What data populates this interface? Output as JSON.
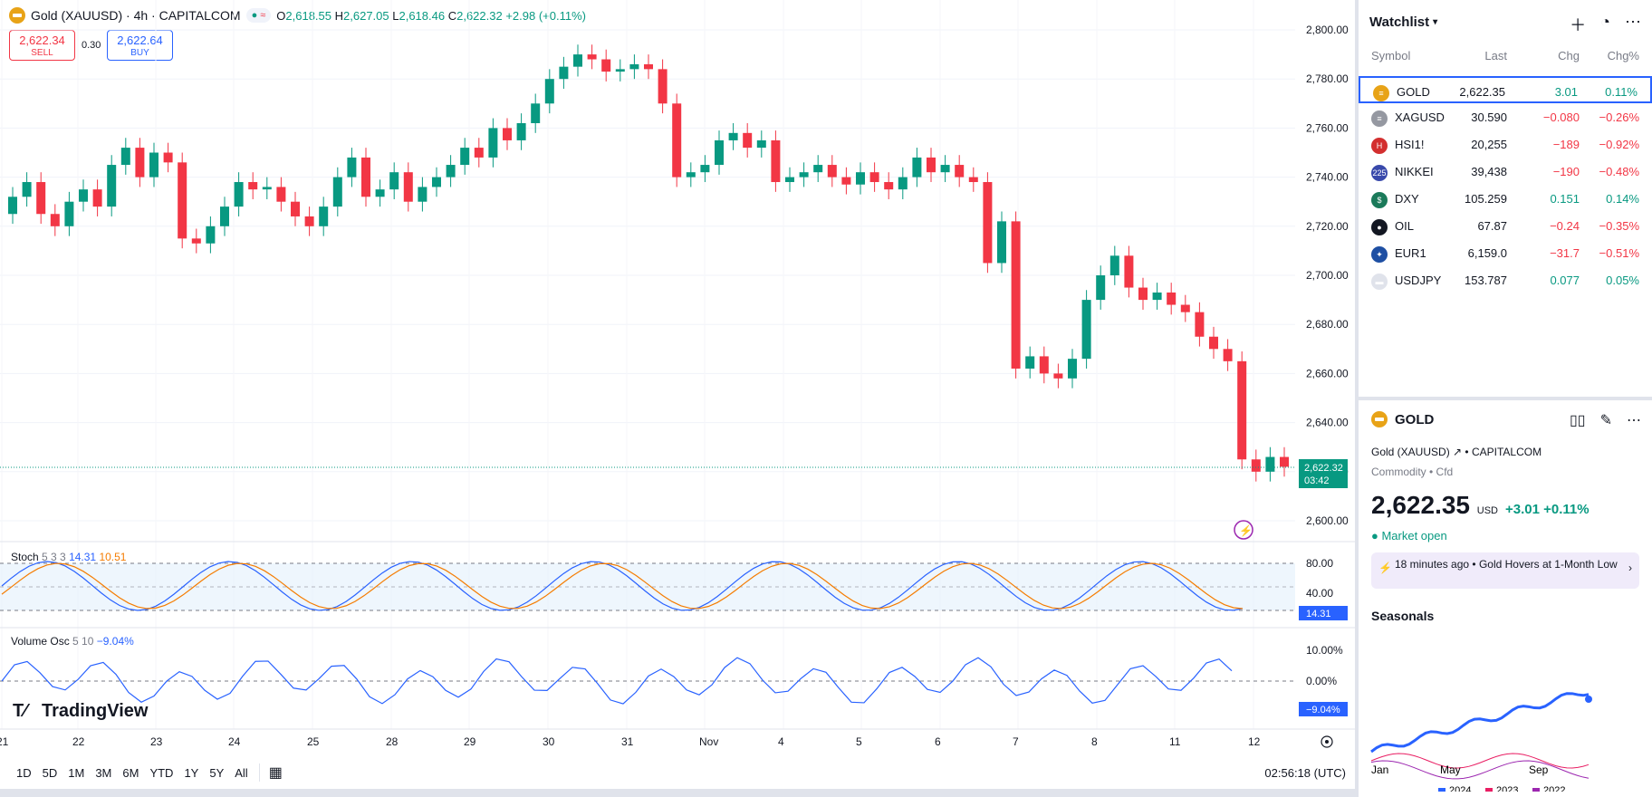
{
  "symbol": {
    "title": "Gold (XAUUSD) · 4h · CAPITALCOM",
    "open_label": "O",
    "open": "2,618.55",
    "high_label": "H",
    "high": "2,627.05",
    "low_label": "L",
    "low": "2,618.46",
    "close_label": "C",
    "close": "2,622.32",
    "change": "+2.98 (+0.11%)",
    "sell_price": "2,622.34",
    "sell_label": "SELL",
    "buy_price": "2,622.64",
    "buy_label": "BUY",
    "spread": "0.30",
    "last_price_tag": "2,622.32",
    "countdown": "03:42"
  },
  "price_axis": [
    "2,800.00",
    "2,780.00",
    "2,760.00",
    "2,740.00",
    "2,720.00",
    "2,700.00",
    "2,680.00",
    "2,660.00",
    "2,640.00",
    "2,620.00",
    "2,600.00"
  ],
  "time_axis": [
    "21",
    "22",
    "23",
    "24",
    "25",
    "28",
    "29",
    "30",
    "31",
    "Nov",
    "4",
    "5",
    "6",
    "7",
    "8",
    "11",
    "12"
  ],
  "stoch": {
    "name": "Stoch",
    "params": "5 3 3",
    "k": "14.31",
    "d": "10.51",
    "axis": [
      "80.00",
      "40.00"
    ],
    "tag": "14.31"
  },
  "volosc": {
    "name": "Volume Osc",
    "params": "5 10",
    "value": "−9.04%",
    "axis": [
      "10.00%",
      "0.00%"
    ],
    "tag": "−9.04%"
  },
  "brand": "TradingView",
  "timeframes": [
    "1D",
    "5D",
    "1M",
    "3M",
    "6M",
    "YTD",
    "1Y",
    "5Y",
    "All"
  ],
  "clock": "02:56:18 (UTC)",
  "watchlist": {
    "title": "Watchlist",
    "columns": [
      "Symbol",
      "Last",
      "Chg",
      "Chg%"
    ],
    "rows": [
      {
        "symbol": "GOLD",
        "last": "2,622.35",
        "chg": "3.01",
        "chgp": "0.11%",
        "dir": "pos",
        "icon_color": "#e8a317",
        "icon": "≡"
      },
      {
        "symbol": "XAGUSD",
        "last": "30.590",
        "chg": "−0.080",
        "chgp": "−0.26%",
        "dir": "neg",
        "icon_color": "#9598a1",
        "icon": "≡"
      },
      {
        "symbol": "HSI1!",
        "last": "20,255",
        "chg": "−189",
        "chgp": "−0.92%",
        "dir": "neg",
        "icon_color": "#d32f2f",
        "icon": "H"
      },
      {
        "symbol": "NIKKEI",
        "last": "39,438",
        "chg": "−190",
        "chgp": "−0.48%",
        "dir": "neg",
        "icon_color": "#3949ab",
        "icon": "225"
      },
      {
        "symbol": "DXY",
        "last": "105.259",
        "chg": "0.151",
        "chgp": "0.14%",
        "dir": "pos",
        "icon_color": "#1b7a5a",
        "icon": "$"
      },
      {
        "symbol": "OIL",
        "last": "67.87",
        "chg": "−0.24",
        "chgp": "−0.35%",
        "dir": "neg",
        "icon_color": "#131722",
        "icon": "●"
      },
      {
        "symbol": "EUR1",
        "last": "6,159.0",
        "chg": "−31.7",
        "chgp": "−0.51%",
        "dir": "neg",
        "icon_color": "#1e4fa3",
        "icon": "✦"
      },
      {
        "symbol": "USDJPY",
        "last": "153.787",
        "chg": "0.077",
        "chgp": "0.05%",
        "dir": "pos",
        "icon_color": "#e0e3eb",
        "icon": "▬"
      }
    ]
  },
  "details": {
    "symbol": "GOLD",
    "name": "Gold (XAUUSD)",
    "exchange": "CAPITALCOM",
    "category": "Commodity • Cfd",
    "price": "2,622.35",
    "currency": "USD",
    "chg": "+3.01",
    "chgp": "+0.11%",
    "status": "Market open",
    "news_time": "18 minutes ago",
    "news_text": "Gold Hovers at 1-Month Low",
    "seasonals_title": "Seasonals",
    "seasonals_x": [
      "Jan",
      "May",
      "Sep"
    ],
    "seasonals_legend": [
      "2024",
      "2023",
      "2022"
    ]
  },
  "colors": {
    "up": "#089981",
    "down": "#f23645",
    "blue": "#2962ff",
    "orange": "#f57c00"
  }
}
